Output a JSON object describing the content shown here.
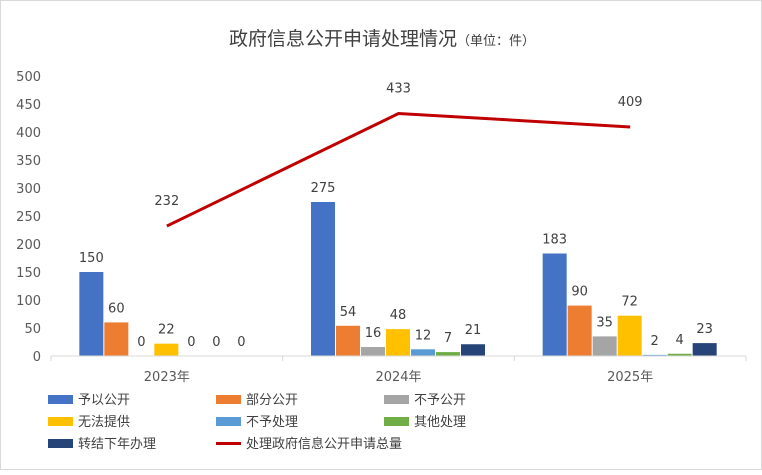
{
  "chart_data": {
    "type": "bar",
    "title": "政府信息公开申请处理情况",
    "title_unit": "（单位：件）",
    "categories": [
      "2023年",
      "2024年",
      "2025年"
    ],
    "ylim": [
      0,
      500
    ],
    "yticks": [
      0,
      50,
      100,
      150,
      200,
      250,
      300,
      350,
      400,
      450,
      500
    ],
    "grid": false,
    "legend_position": "bottom",
    "series": [
      {
        "name": "予以公开",
        "color": "#4472C4",
        "values": [
          150,
          275,
          183
        ]
      },
      {
        "name": "部分公开",
        "color": "#ED7D31",
        "values": [
          60,
          54,
          90
        ]
      },
      {
        "name": "不予公开",
        "color": "#A5A5A5",
        "values": [
          0,
          16,
          35
        ]
      },
      {
        "name": "无法提供",
        "color": "#FFC000",
        "values": [
          22,
          48,
          72
        ]
      },
      {
        "name": "不予处理",
        "color": "#5B9BD5",
        "values": [
          0,
          12,
          2
        ]
      },
      {
        "name": "其他处理",
        "color": "#70AD47",
        "values": [
          0,
          7,
          4
        ]
      },
      {
        "name": "转结下年办理",
        "color": "#264478",
        "values": [
          0,
          21,
          23
        ]
      }
    ],
    "line_series": {
      "name": "处理政府信息公开申请总量",
      "color": "#C00000",
      "values": [
        232,
        433,
        409
      ]
    }
  }
}
